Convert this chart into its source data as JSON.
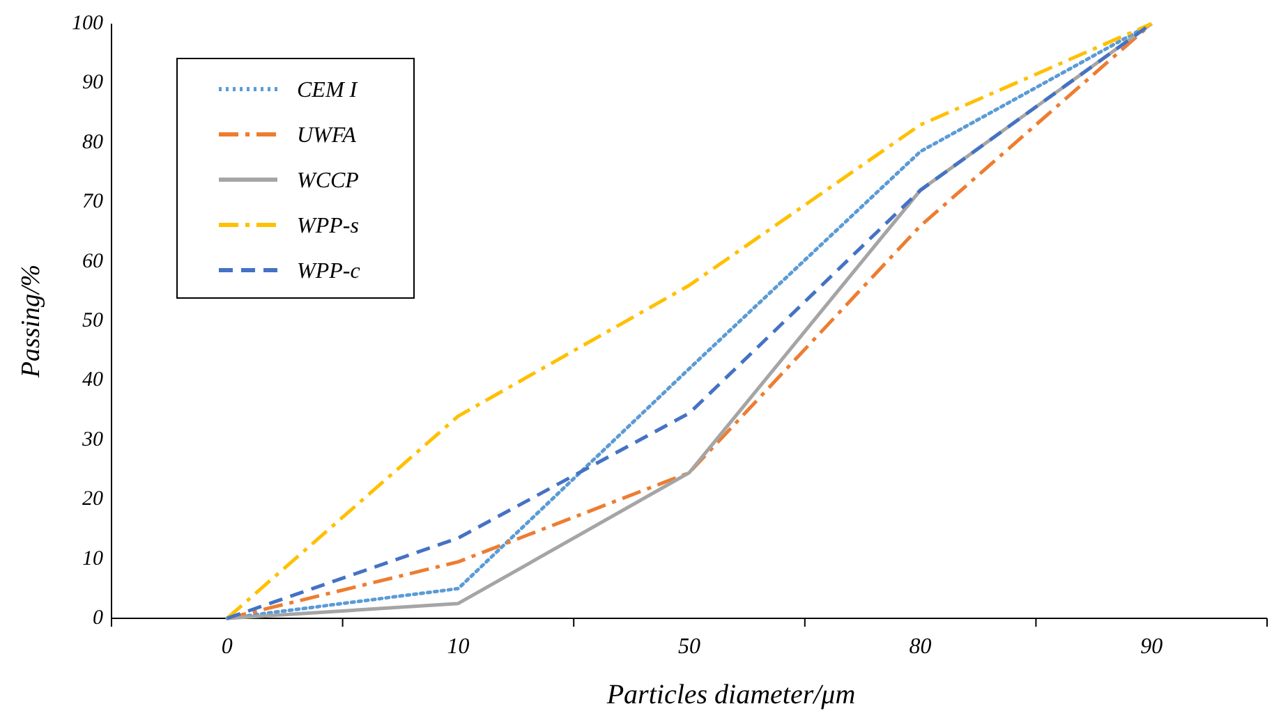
{
  "chart_data": {
    "type": "line",
    "xlabel": "Particles diameter/μm",
    "ylabel": "Passing/%",
    "categories": [
      "0",
      "10",
      "50",
      "80",
      "90"
    ],
    "ylim": [
      0,
      100
    ],
    "yticks": [
      0,
      10,
      20,
      30,
      40,
      50,
      60,
      70,
      80,
      90,
      100
    ],
    "grid": false,
    "legend": "top left",
    "marker": "none",
    "series": [
      {
        "name": "CEM I",
        "color": "#5b9bd5",
        "line_style": "dotted",
        "values": [
          0,
          5,
          42,
          78.5,
          100
        ]
      },
      {
        "name": "UWFA",
        "color": "#ed7d31",
        "line_style": "dashdot",
        "values": [
          0,
          9.5,
          24.5,
          66,
          100
        ]
      },
      {
        "name": "WCCP",
        "color": "#a5a5a5",
        "line_style": "solid",
        "values": [
          0,
          2.5,
          24.5,
          72,
          100
        ]
      },
      {
        "name": "WPP-s",
        "color": "#ffc000",
        "line_style": "dashdot",
        "values": [
          0,
          34,
          56,
          83,
          100
        ]
      },
      {
        "name": "WPP-c",
        "color": "#4472c4",
        "line_style": "dashed",
        "values": [
          0,
          13.5,
          34.5,
          72,
          100
        ]
      }
    ]
  }
}
